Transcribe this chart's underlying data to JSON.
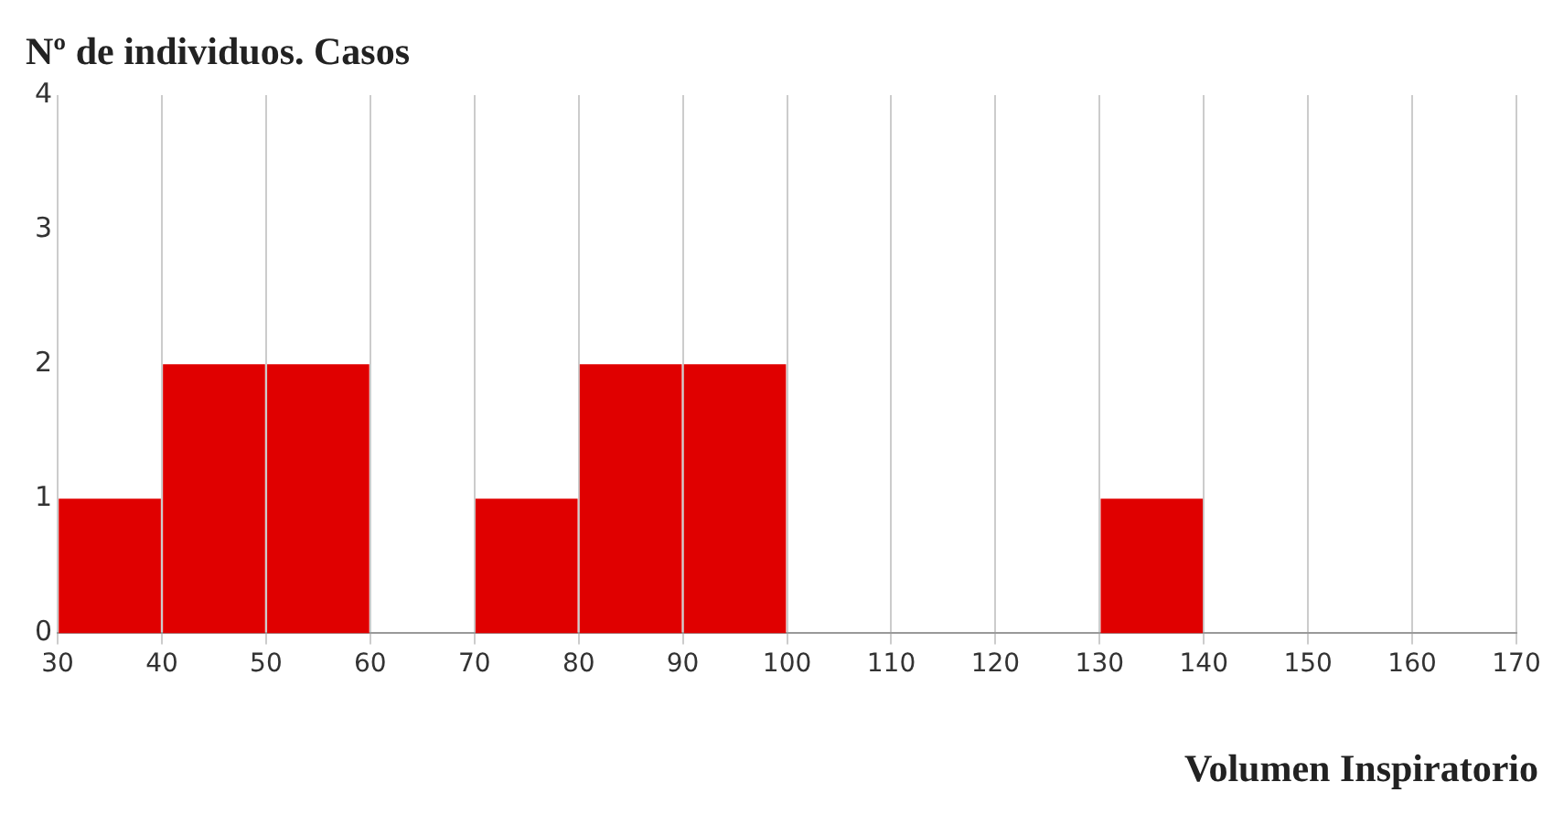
{
  "chart_data": {
    "type": "histogram",
    "ylabel": "Nº de individuos. Casos",
    "xlabel": "Volumen Inspiratorio",
    "bins": [
      30,
      40,
      50,
      60,
      70,
      80,
      90,
      100,
      110,
      120,
      130,
      140,
      150,
      160,
      170
    ],
    "values": [
      1,
      2,
      2,
      0,
      1,
      2,
      2,
      0,
      0,
      0,
      1,
      0,
      0,
      0
    ],
    "color": "#e00000",
    "xlim": [
      30,
      170
    ],
    "xticks": [
      30,
      40,
      50,
      60,
      70,
      80,
      90,
      100,
      110,
      120,
      130,
      140,
      150,
      160,
      170
    ],
    "ylim": [
      0,
      4
    ],
    "yticks": [
      0,
      1,
      2,
      3,
      4
    ],
    "grid": "x",
    "legend": false
  }
}
